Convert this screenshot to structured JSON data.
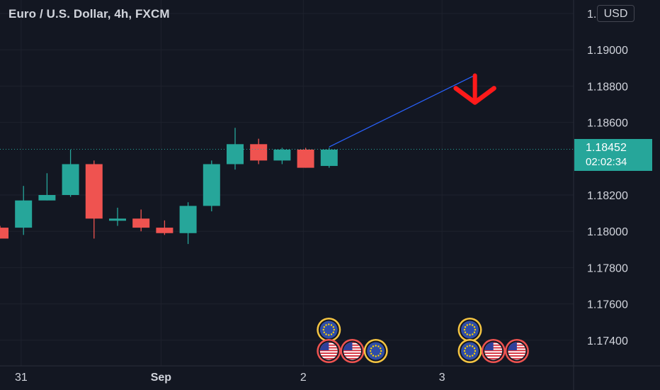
{
  "title": "Euro / U.S. Dollar, 4h, FXCM",
  "currency_button": "USD",
  "last_price": "1.18452",
  "countdown": "02:02:34",
  "colors": {
    "background": "#131722",
    "up": "#26a69a",
    "down": "#ef5350",
    "grid": "#1e222d",
    "text": "#d1d4dc",
    "trend_line": "#2962ff",
    "arrow": "#ff1a1a",
    "event_ring": "#f5c542"
  },
  "icons": {
    "eu_event": "eu-flag-icon",
    "us_event": "us-flag-icon",
    "forecast_arrow": "arrow-down-icon"
  },
  "chart_data": {
    "type": "candlestick",
    "symbol": "EURUSD",
    "interval": "4h",
    "y_ticks": [
      "1.17400",
      "1.17600",
      "1.17800",
      "1.18000",
      "1.18200",
      "1.18600",
      "1.18800",
      "1.19000",
      "1.19200"
    ],
    "x_ticks": [
      "31",
      "Sep",
      "2",
      "3"
    ],
    "ylim": [
      1.1722,
      1.1932
    ],
    "candles": [
      {
        "open": 1.1802,
        "high": 1.1803,
        "low": 1.1796,
        "close": 1.1796
      },
      {
        "open": 1.1802,
        "high": 1.1825,
        "low": 1.1798,
        "close": 1.1817
      },
      {
        "open": 1.1817,
        "high": 1.1832,
        "low": 1.1817,
        "close": 1.182
      },
      {
        "open": 1.182,
        "high": 1.1845,
        "low": 1.1819,
        "close": 1.1837
      },
      {
        "open": 1.1837,
        "high": 1.1839,
        "low": 1.1796,
        "close": 1.1807
      },
      {
        "open": 1.1806,
        "high": 1.1813,
        "low": 1.1803,
        "close": 1.1807
      },
      {
        "open": 1.1807,
        "high": 1.1812,
        "low": 1.18,
        "close": 1.1802
      },
      {
        "open": 1.1802,
        "high": 1.1806,
        "low": 1.1798,
        "close": 1.1799
      },
      {
        "open": 1.1799,
        "high": 1.1816,
        "low": 1.1793,
        "close": 1.1814
      },
      {
        "open": 1.1814,
        "high": 1.1839,
        "low": 1.1811,
        "close": 1.1837
      },
      {
        "open": 1.1837,
        "high": 1.1857,
        "low": 1.1834,
        "close": 1.1848
      },
      {
        "open": 1.1848,
        "high": 1.1851,
        "low": 1.1837,
        "close": 1.1839
      },
      {
        "open": 1.1839,
        "high": 1.1846,
        "low": 1.1837,
        "close": 1.1845
      },
      {
        "open": 1.1845,
        "high": 1.1846,
        "low": 1.1835,
        "close": 1.1835
      },
      {
        "open": 1.1836,
        "high": 1.1846,
        "low": 1.1835,
        "close": 1.1845
      }
    ],
    "last_price": 1.18452,
    "trend_line": {
      "from": [
        14,
        1.18465
      ],
      "to": [
        20.2,
        1.1886
      ]
    },
    "forecast_arrow": {
      "at": [
        20.2,
        1.1878
      ],
      "direction": "down"
    },
    "events": [
      {
        "slot": 14,
        "row": 0,
        "type": "eu"
      },
      {
        "slot": 14,
        "row": 1,
        "type": "us"
      },
      {
        "slot": 15,
        "row": 1,
        "type": "us"
      },
      {
        "slot": 16,
        "row": 1,
        "type": "eu"
      },
      {
        "slot": 20,
        "row": 0,
        "type": "eu"
      },
      {
        "slot": 20,
        "row": 1,
        "type": "eu"
      },
      {
        "slot": 21,
        "row": 1,
        "type": "us"
      },
      {
        "slot": 22,
        "row": 1,
        "type": "us"
      }
    ],
    "grid": true
  }
}
